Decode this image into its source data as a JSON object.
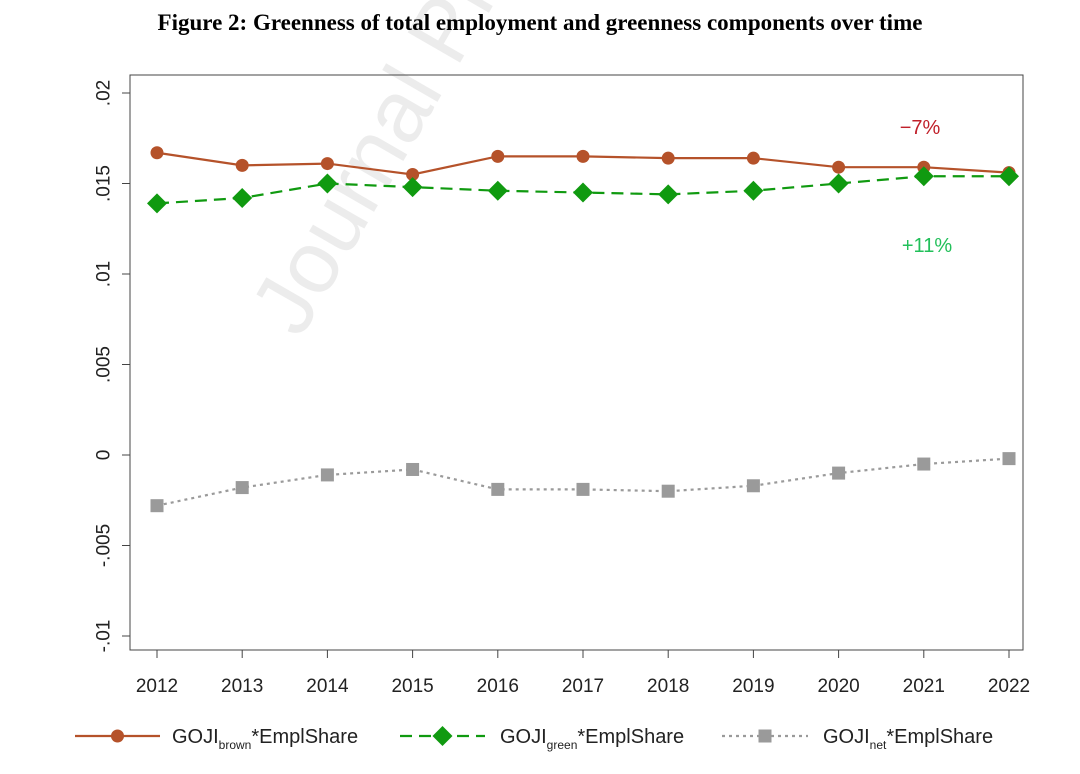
{
  "title": "Figure 2: Greenness of total employment and greenness components over time",
  "watermark": "Journal Pre",
  "colors": {
    "brown": "#b5522a",
    "green": "#109a10",
    "net": "#9a9a9a",
    "neg_annotation": "#c0202a",
    "pos_annotation": "#22c05a"
  },
  "annotations": [
    {
      "text": "−7%",
      "series": "brown"
    },
    {
      "text": "+11%",
      "series": "green"
    }
  ],
  "legend": [
    {
      "main": "GOJI",
      "sub": "brown",
      "suffix": "*EmplShare",
      "series": "brown"
    },
    {
      "main": "GOJI",
      "sub": "green",
      "suffix": "*EmplShare",
      "series": "green"
    },
    {
      "main": "GOJI",
      "sub": "net",
      "suffix": "*EmplShare",
      "series": "net"
    }
  ],
  "chart_data": {
    "type": "line",
    "title": "Figure 2: Greenness of total employment and greenness components over time",
    "xlabel": "",
    "ylabel": "",
    "x": [
      2012,
      2013,
      2014,
      2015,
      2016,
      2017,
      2018,
      2019,
      2020,
      2021,
      2022
    ],
    "ylim": [
      -0.01,
      0.02
    ],
    "yticks": [
      -0.01,
      -0.005,
      0,
      0.005,
      0.01,
      0.015,
      0.02
    ],
    "ytick_labels": [
      "-.01",
      "-.005",
      "0",
      ".005",
      ".01",
      ".015",
      ".02"
    ],
    "grid": false,
    "legend_position": "bottom",
    "series": [
      {
        "name": "GOJI_brown*EmplShare",
        "key": "brown",
        "marker": "circle",
        "dash": "solid",
        "values": [
          0.0167,
          0.016,
          0.0161,
          0.0155,
          0.0165,
          0.0165,
          0.0164,
          0.0164,
          0.0159,
          0.0159,
          0.0156
        ]
      },
      {
        "name": "GOJI_green*EmplShare",
        "key": "green",
        "marker": "diamond",
        "dash": "dashed",
        "values": [
          0.0139,
          0.0142,
          0.015,
          0.0148,
          0.0146,
          0.0145,
          0.0144,
          0.0146,
          0.015,
          0.0154,
          0.0154
        ]
      },
      {
        "name": "GOJI_net*EmplShare",
        "key": "net",
        "marker": "square",
        "dash": "dotted",
        "values": [
          -0.0028,
          -0.0018,
          -0.0011,
          -0.0008,
          -0.0019,
          -0.0019,
          -0.002,
          -0.0017,
          -0.001,
          -0.0005,
          -0.0002
        ]
      }
    ]
  }
}
